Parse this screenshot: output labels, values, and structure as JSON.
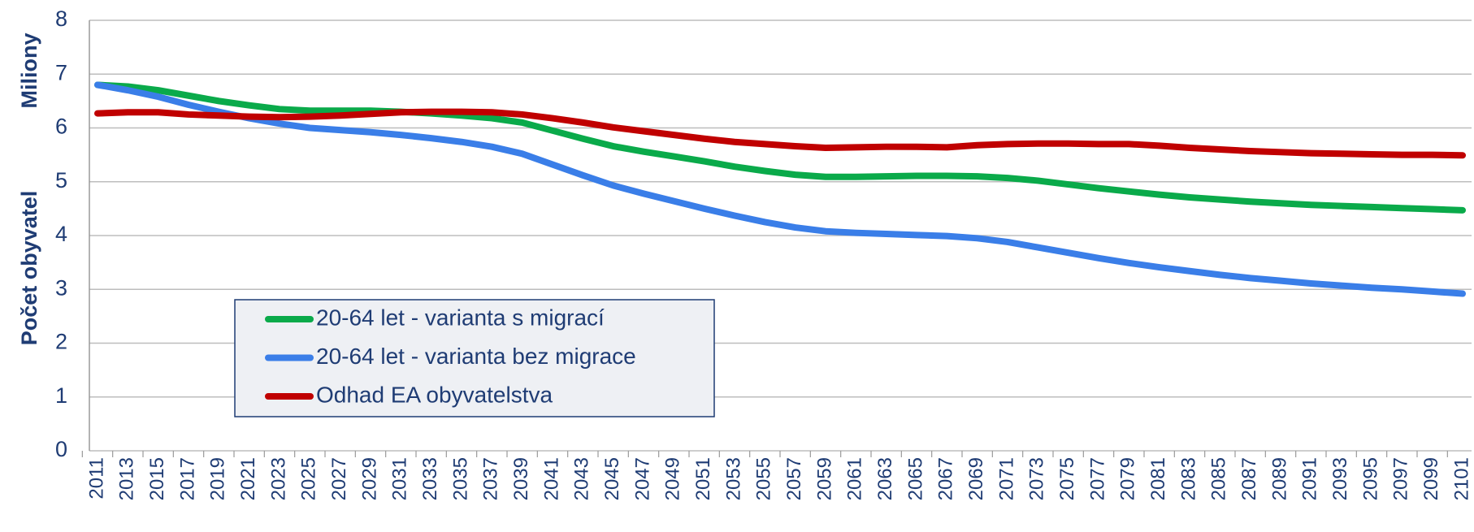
{
  "chart_data": {
    "type": "line",
    "y_axis_label": [
      "Počet obyvatel",
      "Miliony"
    ],
    "categories": [
      "2011",
      "2013",
      "2015",
      "2017",
      "2019",
      "2021",
      "2023",
      "2025",
      "2027",
      "2029",
      "2031",
      "2033",
      "2035",
      "2037",
      "2039",
      "2041",
      "2043",
      "2045",
      "2047",
      "2049",
      "2051",
      "2053",
      "2055",
      "2057",
      "2059",
      "2061",
      "2063",
      "2065",
      "2067",
      "2069",
      "2071",
      "2073",
      "2075",
      "2077",
      "2079",
      "2081",
      "2083",
      "2085",
      "2087",
      "2089",
      "2091",
      "2093",
      "2095",
      "2097",
      "2099",
      "2101"
    ],
    "series": [
      {
        "name": "20-64 let - varianta s migrací",
        "color": "#0aaa4a",
        "values": [
          6.8,
          6.77,
          6.7,
          6.6,
          6.5,
          6.42,
          6.35,
          6.32,
          6.32,
          6.32,
          6.3,
          6.27,
          6.23,
          6.18,
          6.1,
          5.95,
          5.8,
          5.66,
          5.56,
          5.47,
          5.38,
          5.28,
          5.2,
          5.13,
          5.09,
          5.09,
          5.1,
          5.11,
          5.11,
          5.1,
          5.07,
          5.02,
          4.95,
          4.88,
          4.82,
          4.76,
          4.71,
          4.67,
          4.63,
          4.6,
          4.57,
          4.55,
          4.53,
          4.51,
          4.49,
          4.47
        ]
      },
      {
        "name": "20-64 let - varianta bez migrace",
        "color": "#3a7ee8",
        "values": [
          6.8,
          6.7,
          6.58,
          6.43,
          6.3,
          6.18,
          6.08,
          6.0,
          5.96,
          5.92,
          5.87,
          5.81,
          5.74,
          5.65,
          5.52,
          5.32,
          5.12,
          4.93,
          4.78,
          4.64,
          4.5,
          4.37,
          4.25,
          4.15,
          4.08,
          4.05,
          4.03,
          4.01,
          3.99,
          3.95,
          3.88,
          3.78,
          3.68,
          3.58,
          3.49,
          3.41,
          3.34,
          3.27,
          3.21,
          3.16,
          3.11,
          3.07,
          3.03,
          3.0,
          2.96,
          2.92
        ]
      },
      {
        "name": "Odhad EA obyvatelstva",
        "color": "#c00000",
        "values": [
          6.27,
          6.29,
          6.29,
          6.25,
          6.23,
          6.21,
          6.2,
          6.21,
          6.23,
          6.26,
          6.29,
          6.3,
          6.3,
          6.29,
          6.25,
          6.18,
          6.1,
          6.01,
          5.94,
          5.87,
          5.8,
          5.74,
          5.7,
          5.66,
          5.63,
          5.64,
          5.65,
          5.65,
          5.64,
          5.68,
          5.7,
          5.71,
          5.71,
          5.7,
          5.7,
          5.67,
          5.63,
          5.6,
          5.57,
          5.55,
          5.53,
          5.52,
          5.51,
          5.5,
          5.5,
          5.49
        ]
      }
    ],
    "ylim": [
      0,
      8
    ],
    "yticks": [
      0,
      1,
      2,
      3,
      4,
      5,
      6,
      7,
      8
    ],
    "grid": true
  }
}
